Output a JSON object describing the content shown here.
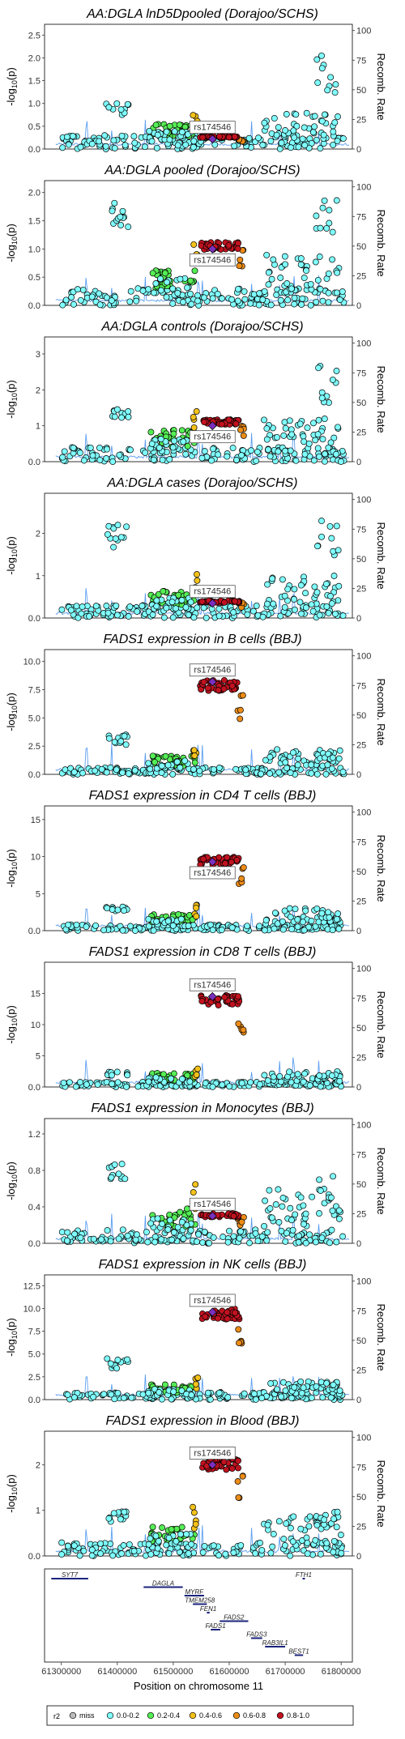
{
  "colors": {
    "miss": "#bdbdbd",
    "bin1": "#7fffff",
    "bin2": "#55ee55",
    "bin3": "#f5c21b",
    "bin4": "#ec8c17",
    "bin5": "#c1121f",
    "lead": "#7b2fbe",
    "recomb": "#5b9ef0",
    "gene_bar": "#1a237e"
  },
  "chart_data": [
    {
      "type": "scatter",
      "title": "AA:DGLA lnD5Dpooled (Dorajoo/SCHS)",
      "ylabel": "-log10(p)",
      "y2label": "Recomb. Rate",
      "yticks": [
        0,
        0.5,
        1,
        1.5,
        2,
        2.5
      ],
      "ylim": [
        0,
        2.6
      ],
      "y2ticks": [
        0,
        25,
        50,
        75,
        100
      ],
      "lead_label": "rs174546",
      "lead": {
        "x": 61570,
        "y": 0.22
      },
      "bg": [
        0.3,
        0.5,
        0.8
      ],
      "hi": 0.28,
      "peak_left": 1.0,
      "peak_right": 2.05
    },
    {
      "type": "scatter",
      "title": "AA:DGLA pooled (Dorajoo/SCHS)",
      "ylabel": "-log10(p)",
      "y2label": "Recomb. Rate",
      "yticks": [
        0,
        0.5,
        1,
        1.5,
        2
      ],
      "ylim": [
        0,
        2.1
      ],
      "y2ticks": [
        0,
        25,
        50,
        75,
        100
      ],
      "lead_label": "rs174546",
      "lead": {
        "x": 61570,
        "y": 1.0
      },
      "bg": [
        0.3,
        0.6,
        0.9
      ],
      "hi": 1.1,
      "peak_left": 1.85,
      "peak_right": 1.9
    },
    {
      "type": "scatter",
      "title": "AA:DGLA controls (Dorajoo/SCHS)",
      "ylabel": "-log10(p)",
      "y2label": "Recomb. Rate",
      "yticks": [
        0,
        1,
        2,
        3
      ],
      "ylim": [
        0,
        3.3
      ],
      "y2ticks": [
        0,
        25,
        50,
        75,
        100
      ],
      "lead_label": "rs174546",
      "lead": {
        "x": 61570,
        "y": 1.0
      },
      "bg": [
        0.4,
        0.8,
        1.2
      ],
      "hi": 1.15,
      "peak_left": 1.6,
      "peak_right": 2.7
    },
    {
      "type": "scatter",
      "title": "AA:DGLA cases (Dorajoo/SCHS)",
      "ylabel": "-log10(p)",
      "y2label": "Recomb. Rate",
      "yticks": [
        0,
        1,
        2
      ],
      "ylim": [
        0,
        2.8
      ],
      "y2ticks": [
        0,
        25,
        50,
        75,
        100
      ],
      "lead_label": "rs174546",
      "lead": {
        "x": 61570,
        "y": 0.35
      },
      "bg": [
        0.3,
        0.6,
        1.0
      ],
      "hi": 0.4,
      "peak_left": 2.2,
      "peak_right": 2.35
    },
    {
      "type": "scatter",
      "title": "FADS1 expression in B cells (BBJ)",
      "ylabel": "-log10(p)",
      "y2label": "Recomb. Rate",
      "yticks": [
        0,
        2.5,
        5,
        7.5,
        10
      ],
      "ylim": [
        0,
        10.5
      ],
      "y2ticks": [
        0,
        25,
        50,
        75,
        100
      ],
      "lead_label": "rs174546",
      "lead": {
        "x": 61570,
        "y": 8.2
      },
      "bg": [
        0.6,
        1.5,
        2.3
      ],
      "hi": 8.2,
      "peak_left": 3.5,
      "peak_right": 1.9
    },
    {
      "type": "scatter",
      "title": "FADS1 expression in CD4 T cells (BBJ)",
      "ylabel": "-log10(p)",
      "y2label": "Recomb. Rate",
      "yticks": [
        0,
        5,
        10,
        15
      ],
      "ylim": [
        0,
        16
      ],
      "y2ticks": [
        0,
        25,
        50,
        75,
        100
      ],
      "lead_label": "rs174546",
      "lead": {
        "x": 61570,
        "y": 9.3
      },
      "bg": [
        0.8,
        2.0,
        3.0
      ],
      "hi": 9.8,
      "peak_left": 3.5,
      "peak_right": 2.5
    },
    {
      "type": "scatter",
      "title": "FADS1 expression in CD8 T cells (BBJ)",
      "ylabel": "-log10(p)",
      "y2label": "Recomb. Rate",
      "yticks": [
        0,
        5,
        10,
        15
      ],
      "ylim": [
        0,
        19
      ],
      "y2ticks": [
        0,
        25,
        50,
        75,
        100
      ],
      "lead_label": "rs174546",
      "lead": {
        "x": 61570,
        "y": 14.5
      },
      "bg": [
        0.8,
        2.0,
        2.5
      ],
      "hi": 14.5,
      "peak_left": 2.5,
      "peak_right": 1.9
    },
    {
      "type": "scatter",
      "title": "FADS1 expression in Monocytes (BBJ)",
      "ylabel": "-log10(p)",
      "y2label": "Recomb. Rate",
      "yticks": [
        0,
        0.4,
        0.8,
        1.2
      ],
      "ylim": [
        0,
        1.3
      ],
      "y2ticks": [
        0,
        25,
        50,
        75,
        100
      ],
      "lead_label": "rs174546",
      "lead": {
        "x": 61570,
        "y": 0.3
      },
      "bg": [
        0.15,
        0.35,
        0.6
      ],
      "hi": 0.32,
      "peak_left": 0.9,
      "peak_right": 0.75
    },
    {
      "type": "scatter",
      "title": "FADS1 expression in NK cells (BBJ)",
      "ylabel": "-log10(p)",
      "y2label": "Recomb. Rate",
      "yticks": [
        0,
        2.5,
        5,
        7.5,
        10,
        12.5
      ],
      "ylim": [
        0,
        13
      ],
      "y2ticks": [
        0,
        25,
        50,
        75,
        100
      ],
      "lead_label": "rs174546",
      "lead": {
        "x": 61570,
        "y": 9.6
      },
      "bg": [
        0.8,
        1.5,
        2.0
      ],
      "hi": 9.8,
      "peak_left": 4.5,
      "peak_right": 2.0
    },
    {
      "type": "scatter",
      "title": "FADS1 expression in Blood (BBJ)",
      "ylabel": "-log10(p)",
      "y2label": "Recomb. Rate",
      "yticks": [
        0,
        1,
        2
      ],
      "ylim": [
        0,
        2.6
      ],
      "y2ticks": [
        0,
        25,
        50,
        75,
        100
      ],
      "lead_label": "rs174546",
      "lead": {
        "x": 61570,
        "y": 2.0
      },
      "bg": [
        0.3,
        0.6,
        0.9
      ],
      "hi": 2.1,
      "peak_left": 1.0,
      "peak_right": 1.0
    }
  ],
  "genes": [
    {
      "name": "SYT7",
      "start": 61282,
      "end": 61348,
      "row": 0
    },
    {
      "name": "DAGLA",
      "start": 61447,
      "end": 61517,
      "row": 1
    },
    {
      "name": "MYRF",
      "start": 61520,
      "end": 61555,
      "row": 2
    },
    {
      "name": "TMEM258",
      "start": 61535,
      "end": 61560,
      "row": 3
    },
    {
      "name": "FEN1",
      "start": 61560,
      "end": 61565,
      "row": 4
    },
    {
      "name": "FADS2",
      "start": 61583,
      "end": 61634,
      "row": 5
    },
    {
      "name": "FADS1",
      "start": 61567,
      "end": 61584,
      "row": 6
    },
    {
      "name": "FADS3",
      "start": 61639,
      "end": 61659,
      "row": 7
    },
    {
      "name": "RAB3IL1",
      "start": 61664,
      "end": 61700,
      "row": 8
    },
    {
      "name": "BEST1",
      "start": 61717,
      "end": 61732,
      "row": 9
    },
    {
      "name": "FTH1",
      "start": 61731,
      "end": 61735,
      "row": 0
    }
  ],
  "xaxis": {
    "label": "Position on chromosome 11",
    "ticks": [
      "61300000",
      "61400000",
      "61500000",
      "61600000",
      "61700000",
      "61800000"
    ],
    "tick_values": [
      61300,
      61400,
      61500,
      61600,
      61700,
      61800
    ],
    "range": [
      61270,
      61820
    ]
  },
  "legend": {
    "title": "r2",
    "items": [
      {
        "label": "miss",
        "color": "#bdbdbd"
      },
      {
        "label": "0.0-0.2",
        "color": "#7fffff"
      },
      {
        "label": "0.2-0.4",
        "color": "#55ee55"
      },
      {
        "label": "0.4-0.6",
        "color": "#f5c21b"
      },
      {
        "label": "0.6-0.8",
        "color": "#ec8c17"
      },
      {
        "label": "0.8-1.0",
        "color": "#c1121f"
      }
    ]
  }
}
